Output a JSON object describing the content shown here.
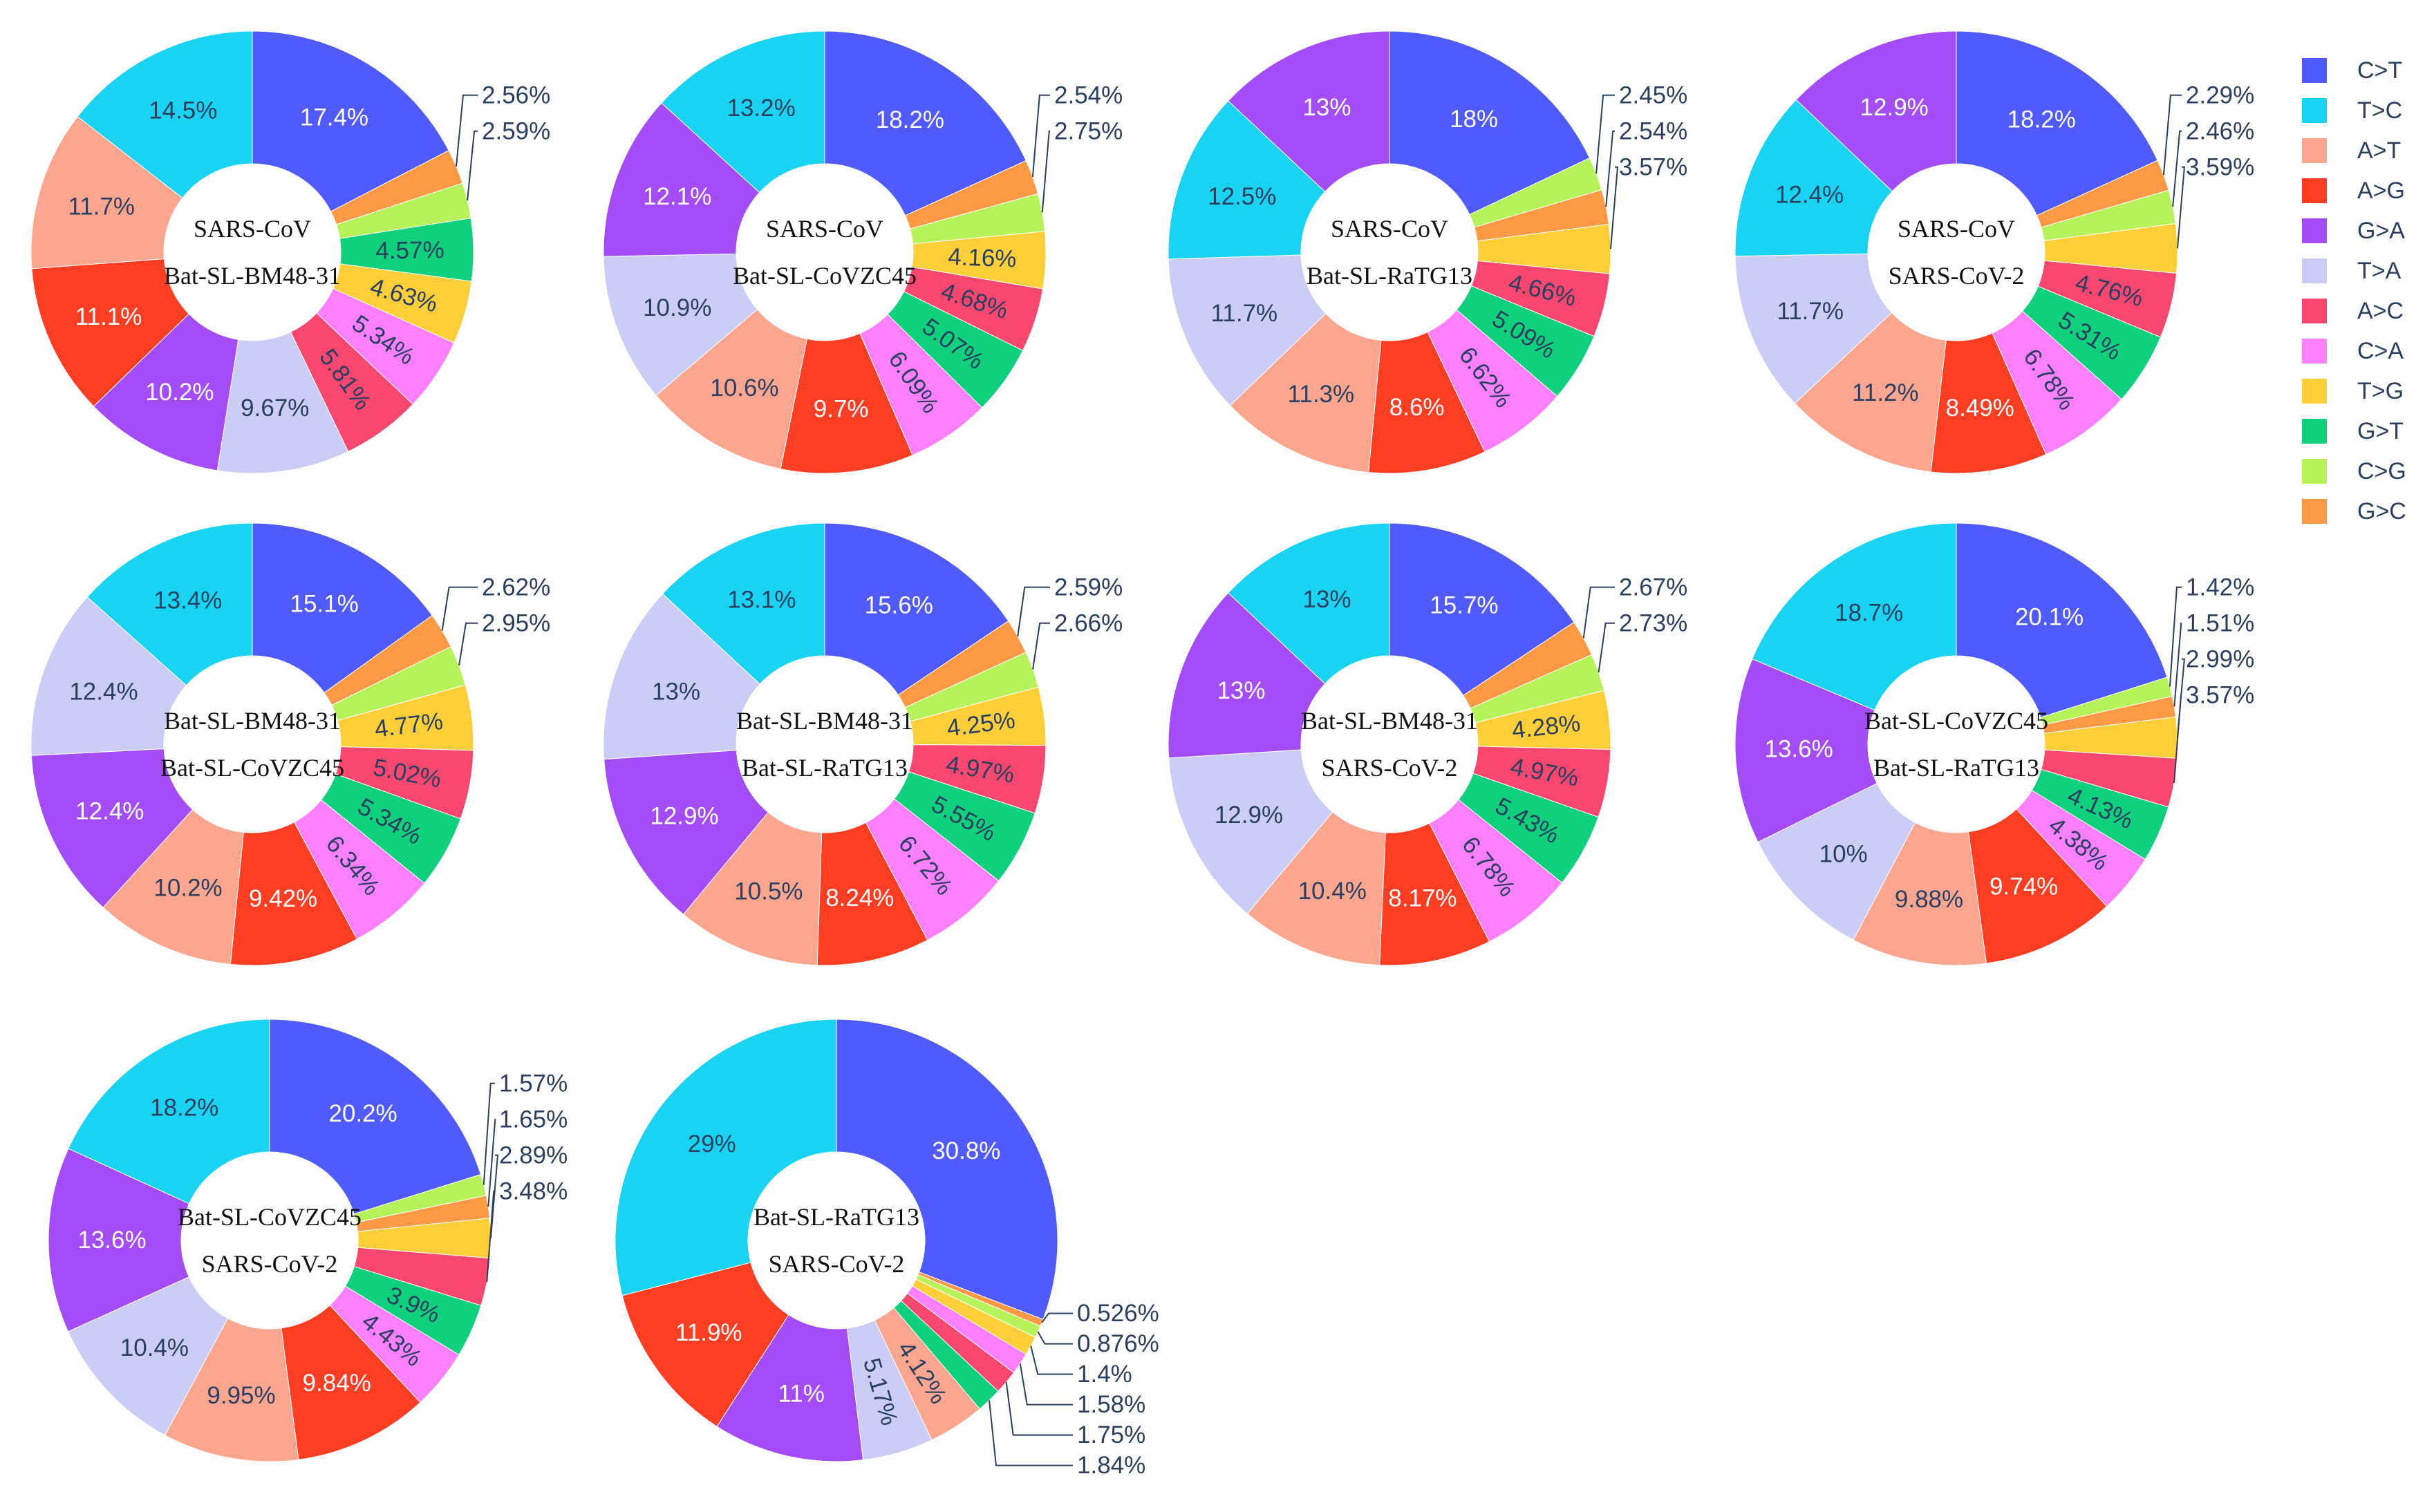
{
  "palette": {
    "C>T": "#636efa",
    "T>C": "#00cc96",
    "A>T": "#fca690",
    "A>G": "#ef553b",
    "G>A": "#ab63fa",
    "T>A": "#c9cdf7",
    "A>C": "#ff6692",
    "C>A": "#ff97ff",
    "T>G": "#fecb52",
    "G>T": "#00c48c",
    "C>G": "#b6e880",
    "G>C": "#ffa15a"
  },
  "colors": {
    "C>T": "#4f5bff",
    "T>C": "#19d3f3",
    "A>T": "#fca690",
    "A>G": "#fe3e23",
    "G>A": "#a34cf7",
    "T>A": "#cbcdf7",
    "A>C": "#fa476f",
    "C>A": "#fe80fe",
    "T>G": "#ffcf3a",
    "G>T": "#0fd07c",
    "C>G": "#b6f35a",
    "G>C": "#fe9a45"
  },
  "legend": [
    "C>T",
    "T>C",
    "A>T",
    "A>G",
    "G>A",
    "T>A",
    "A>C",
    "C>A",
    "T>G",
    "G>T",
    "C>G",
    "G>C"
  ],
  "chart_data": [
    {
      "type": "pie",
      "hole": 0.4,
      "title_lines": [
        "SARS-CoV",
        "Bat-SL-BM48-31"
      ],
      "slices": [
        {
          "category": "C>T",
          "value": 17.4,
          "label": "17.4%"
        },
        {
          "category": "G>C",
          "value": 2.56,
          "label": "2.56%"
        },
        {
          "category": "C>G",
          "value": 2.59,
          "label": "2.59%"
        },
        {
          "category": "G>T",
          "value": 4.57,
          "label": "4.57%"
        },
        {
          "category": "T>G",
          "value": 4.63,
          "label": "4.63%"
        },
        {
          "category": "C>A",
          "value": 5.34,
          "label": "5.34%"
        },
        {
          "category": "A>C",
          "value": 5.81,
          "label": "5.81%"
        },
        {
          "category": "T>A",
          "value": 9.67,
          "label": "9.67%"
        },
        {
          "category": "G>A",
          "value": 10.2,
          "label": "10.2%"
        },
        {
          "category": "A>G",
          "value": 11.1,
          "label": "11.1%"
        },
        {
          "category": "A>T",
          "value": 11.7,
          "label": "11.7%"
        },
        {
          "category": "T>C",
          "value": 14.5,
          "label": "14.5%"
        }
      ]
    },
    {
      "type": "pie",
      "hole": 0.4,
      "title_lines": [
        "SARS-CoV",
        "Bat-SL-CoVZC45"
      ],
      "slices": [
        {
          "category": "C>T",
          "value": 18.2,
          "label": "18.2%"
        },
        {
          "category": "G>C",
          "value": 2.54,
          "label": "2.54%"
        },
        {
          "category": "C>G",
          "value": 2.75,
          "label": "2.75%"
        },
        {
          "category": "T>G",
          "value": 4.16,
          "label": "4.16%"
        },
        {
          "category": "A>C",
          "value": 4.68,
          "label": "4.68%"
        },
        {
          "category": "G>T",
          "value": 5.07,
          "label": "5.07%"
        },
        {
          "category": "C>A",
          "value": 6.09,
          "label": "6.09%"
        },
        {
          "category": "A>G",
          "value": 9.7,
          "label": "9.7%"
        },
        {
          "category": "A>T",
          "value": 10.6,
          "label": "10.6%"
        },
        {
          "category": "T>A",
          "value": 10.9,
          "label": "10.9%"
        },
        {
          "category": "G>A",
          "value": 12.1,
          "label": "12.1%"
        },
        {
          "category": "T>C",
          "value": 13.2,
          "label": "13.2%"
        }
      ]
    },
    {
      "type": "pie",
      "hole": 0.4,
      "title_lines": [
        "SARS-CoV",
        "Bat-SL-RaTG13"
      ],
      "slices": [
        {
          "category": "C>T",
          "value": 18.0,
          "label": "18%"
        },
        {
          "category": "C>G",
          "value": 2.45,
          "label": "2.45%"
        },
        {
          "category": "G>C",
          "value": 2.54,
          "label": "2.54%"
        },
        {
          "category": "T>G",
          "value": 3.57,
          "label": "3.57%"
        },
        {
          "category": "A>C",
          "value": 4.66,
          "label": "4.66%"
        },
        {
          "category": "G>T",
          "value": 5.09,
          "label": "5.09%"
        },
        {
          "category": "C>A",
          "value": 6.62,
          "label": "6.62%"
        },
        {
          "category": "A>G",
          "value": 8.6,
          "label": "8.6%"
        },
        {
          "category": "A>T",
          "value": 11.3,
          "label": "11.3%"
        },
        {
          "category": "T>A",
          "value": 11.7,
          "label": "11.7%"
        },
        {
          "category": "T>C",
          "value": 12.5,
          "label": "12.5%"
        },
        {
          "category": "G>A",
          "value": 13.0,
          "label": "13%"
        }
      ]
    },
    {
      "type": "pie",
      "hole": 0.4,
      "title_lines": [
        "SARS-CoV",
        "SARS-CoV-2"
      ],
      "slices": [
        {
          "category": "C>T",
          "value": 18.2,
          "label": "18.2%"
        },
        {
          "category": "G>C",
          "value": 2.29,
          "label": "2.29%"
        },
        {
          "category": "C>G",
          "value": 2.46,
          "label": "2.46%"
        },
        {
          "category": "T>G",
          "value": 3.59,
          "label": "3.59%"
        },
        {
          "category": "A>C",
          "value": 4.76,
          "label": "4.76%"
        },
        {
          "category": "G>T",
          "value": 5.31,
          "label": "5.31%"
        },
        {
          "category": "C>A",
          "value": 6.78,
          "label": "6.78%"
        },
        {
          "category": "A>G",
          "value": 8.49,
          "label": "8.49%"
        },
        {
          "category": "A>T",
          "value": 11.2,
          "label": "11.2%"
        },
        {
          "category": "T>A",
          "value": 11.7,
          "label": "11.7%"
        },
        {
          "category": "T>C",
          "value": 12.4,
          "label": "12.4%"
        },
        {
          "category": "G>A",
          "value": 12.9,
          "label": "12.9%"
        }
      ]
    },
    {
      "type": "pie",
      "hole": 0.4,
      "title_lines": [
        "Bat-SL-BM48-31",
        "Bat-SL-CoVZC45"
      ],
      "slices": [
        {
          "category": "C>T",
          "value": 15.1,
          "label": "15.1%"
        },
        {
          "category": "G>C",
          "value": 2.62,
          "label": "2.62%"
        },
        {
          "category": "C>G",
          "value": 2.95,
          "label": "2.95%"
        },
        {
          "category": "T>G",
          "value": 4.77,
          "label": "4.77%"
        },
        {
          "category": "A>C",
          "value": 5.02,
          "label": "5.02%"
        },
        {
          "category": "G>T",
          "value": 5.34,
          "label": "5.34%"
        },
        {
          "category": "C>A",
          "value": 6.34,
          "label": "6.34%"
        },
        {
          "category": "A>G",
          "value": 9.42,
          "label": "9.42%"
        },
        {
          "category": "A>T",
          "value": 10.2,
          "label": "10.2%"
        },
        {
          "category": "G>A",
          "value": 12.4,
          "label": "12.4%"
        },
        {
          "category": "T>A",
          "value": 12.4,
          "label": "12.4%"
        },
        {
          "category": "T>C",
          "value": 13.4,
          "label": "13.4%"
        }
      ]
    },
    {
      "type": "pie",
      "hole": 0.4,
      "title_lines": [
        "Bat-SL-BM48-31",
        "Bat-SL-RaTG13"
      ],
      "slices": [
        {
          "category": "C>T",
          "value": 15.6,
          "label": "15.6%"
        },
        {
          "category": "G>C",
          "value": 2.59,
          "label": "2.59%"
        },
        {
          "category": "C>G",
          "value": 2.66,
          "label": "2.66%"
        },
        {
          "category": "T>G",
          "value": 4.25,
          "label": "4.25%"
        },
        {
          "category": "A>C",
          "value": 4.97,
          "label": "4.97%"
        },
        {
          "category": "G>T",
          "value": 5.55,
          "label": "5.55%"
        },
        {
          "category": "C>A",
          "value": 6.72,
          "label": "6.72%"
        },
        {
          "category": "A>G",
          "value": 8.24,
          "label": "8.24%"
        },
        {
          "category": "A>T",
          "value": 10.5,
          "label": "10.5%"
        },
        {
          "category": "G>A",
          "value": 12.9,
          "label": "12.9%"
        },
        {
          "category": "T>A",
          "value": 13.0,
          "label": "13%"
        },
        {
          "category": "T>C",
          "value": 13.1,
          "label": "13.1%"
        }
      ]
    },
    {
      "type": "pie",
      "hole": 0.4,
      "title_lines": [
        "Bat-SL-BM48-31",
        "SARS-CoV-2"
      ],
      "slices": [
        {
          "category": "C>T",
          "value": 15.7,
          "label": "15.7%"
        },
        {
          "category": "G>C",
          "value": 2.67,
          "label": "2.67%"
        },
        {
          "category": "C>G",
          "value": 2.73,
          "label": "2.73%"
        },
        {
          "category": "T>G",
          "value": 4.28,
          "label": "4.28%"
        },
        {
          "category": "A>C",
          "value": 4.97,
          "label": "4.97%"
        },
        {
          "category": "G>T",
          "value": 5.43,
          "label": "5.43%"
        },
        {
          "category": "C>A",
          "value": 6.78,
          "label": "6.78%"
        },
        {
          "category": "A>G",
          "value": 8.17,
          "label": "8.17%"
        },
        {
          "category": "A>T",
          "value": 10.4,
          "label": "10.4%"
        },
        {
          "category": "T>A",
          "value": 12.9,
          "label": "12.9%"
        },
        {
          "category": "G>A",
          "value": 13.0,
          "label": "13%"
        },
        {
          "category": "T>C",
          "value": 13.0,
          "label": "13%"
        }
      ]
    },
    {
      "type": "pie",
      "hole": 0.4,
      "title_lines": [
        "Bat-SL-CoVZC45",
        "Bat-SL-RaTG13"
      ],
      "slices": [
        {
          "category": "C>T",
          "value": 20.1,
          "label": "20.1%"
        },
        {
          "category": "C>G",
          "value": 1.42,
          "label": "1.42%"
        },
        {
          "category": "G>C",
          "value": 1.51,
          "label": "1.51%"
        },
        {
          "category": "T>G",
          "value": 2.99,
          "label": "2.99%"
        },
        {
          "category": "A>C",
          "value": 3.57,
          "label": "3.57%"
        },
        {
          "category": "G>T",
          "value": 4.13,
          "label": "4.13%"
        },
        {
          "category": "C>A",
          "value": 4.38,
          "label": "4.38%"
        },
        {
          "category": "A>G",
          "value": 9.74,
          "label": "9.74%"
        },
        {
          "category": "A>T",
          "value": 9.88,
          "label": "9.88%"
        },
        {
          "category": "T>A",
          "value": 10.0,
          "label": "10%"
        },
        {
          "category": "G>A",
          "value": 13.6,
          "label": "13.6%"
        },
        {
          "category": "T>C",
          "value": 18.7,
          "label": "18.7%"
        }
      ]
    },
    {
      "type": "pie",
      "hole": 0.4,
      "title_lines": [
        "Bat-SL-CoVZC45",
        "SARS-CoV-2"
      ],
      "slices": [
        {
          "category": "C>T",
          "value": 20.2,
          "label": "20.2%"
        },
        {
          "category": "C>G",
          "value": 1.57,
          "label": "1.57%"
        },
        {
          "category": "G>C",
          "value": 1.65,
          "label": "1.65%"
        },
        {
          "category": "T>G",
          "value": 2.89,
          "label": "2.89%"
        },
        {
          "category": "A>C",
          "value": 3.48,
          "label": "3.48%"
        },
        {
          "category": "G>T",
          "value": 3.9,
          "label": "3.9%"
        },
        {
          "category": "C>A",
          "value": 4.43,
          "label": "4.43%"
        },
        {
          "category": "A>G",
          "value": 9.84,
          "label": "9.84%"
        },
        {
          "category": "A>T",
          "value": 9.95,
          "label": "9.95%"
        },
        {
          "category": "T>A",
          "value": 10.4,
          "label": "10.4%"
        },
        {
          "category": "G>A",
          "value": 13.6,
          "label": "13.6%"
        },
        {
          "category": "T>C",
          "value": 18.2,
          "label": "18.2%"
        }
      ]
    },
    {
      "type": "pie",
      "hole": 0.4,
      "title_lines": [
        "Bat-SL-RaTG13",
        "SARS-CoV-2"
      ],
      "slices": [
        {
          "category": "C>T",
          "value": 30.8,
          "label": "30.8%"
        },
        {
          "category": "G>C",
          "value": 0.526,
          "label": "0.526%"
        },
        {
          "category": "C>G",
          "value": 0.876,
          "label": "0.876%"
        },
        {
          "category": "T>G",
          "value": 1.4,
          "label": "1.4%"
        },
        {
          "category": "C>A",
          "value": 1.58,
          "label": "1.58%"
        },
        {
          "category": "A>C",
          "value": 1.75,
          "label": "1.75%"
        },
        {
          "category": "G>T",
          "value": 1.84,
          "label": "1.84%"
        },
        {
          "category": "A>T",
          "value": 4.12,
          "label": "4.12%"
        },
        {
          "category": "T>A",
          "value": 5.17,
          "label": "5.17%"
        },
        {
          "category": "G>A",
          "value": 11.0,
          "label": "11%"
        },
        {
          "category": "A>G",
          "value": 11.9,
          "label": "11.9%"
        },
        {
          "category": "T>C",
          "value": 29.0,
          "label": "29%"
        }
      ]
    }
  ]
}
